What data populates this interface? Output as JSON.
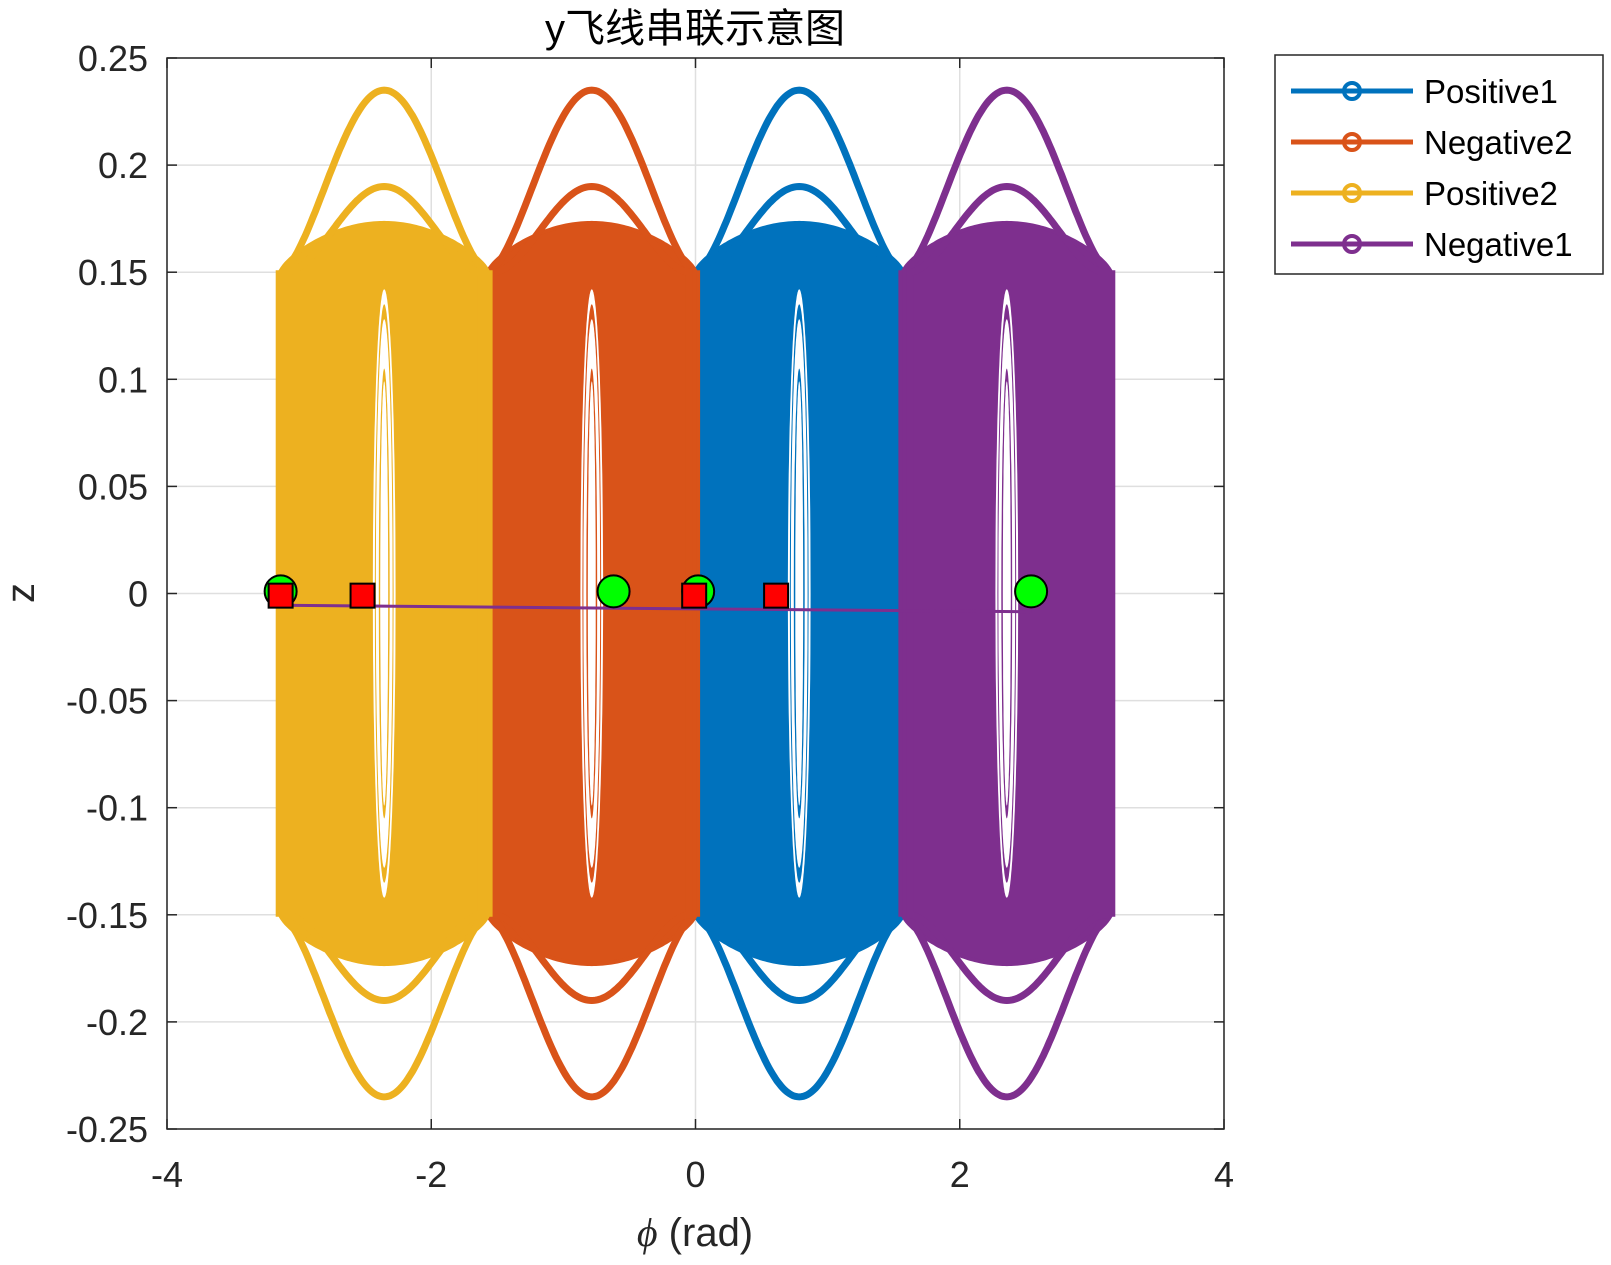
{
  "chart_data": {
    "type": "line",
    "title": "y飞线串联示意图",
    "xlabel_symbol": "ϕ",
    "xlabel_unit": " (rad)",
    "ylabel": "z",
    "xlim": [
      -4,
      4
    ],
    "ylim": [
      -0.25,
      0.25
    ],
    "xticks": [
      -4,
      -2,
      0,
      2,
      4
    ],
    "xtick_labels": [
      "-4",
      "-2",
      "0",
      "2",
      "4"
    ],
    "yticks": [
      0.25,
      0.2,
      0.15,
      0.1,
      0.05,
      0,
      -0.05,
      -0.1,
      -0.15,
      -0.2,
      -0.25
    ],
    "ytick_labels": [
      "0.25",
      "0.2",
      "0.15",
      "0.1",
      "0.05",
      "0",
      "-0.05",
      "-0.1",
      "-0.15",
      "-0.2",
      "-0.25"
    ],
    "grid": true,
    "legend_position": "outside-top-right",
    "series": [
      {
        "name": "Positive1",
        "color": "#0072BD",
        "center": 0.785,
        "x_range": [
          0,
          1.571
        ],
        "outer_peak": 0.235,
        "second_peak": 0.19,
        "band_edge": 0.15,
        "band_peak": 0.173,
        "inner_hole_half_width": 0.075,
        "inner_hole_peak": 0.13,
        "innermost_hole_peak": 0.105,
        "marker_style": "o"
      },
      {
        "name": "Negative2",
        "color": "#D95319",
        "center": -0.785,
        "x_range": [
          -1.571,
          0
        ],
        "outer_peak": 0.235,
        "second_peak": 0.19,
        "band_edge": 0.15,
        "band_peak": 0.173,
        "inner_hole_half_width": 0.075,
        "inner_hole_peak": 0.13,
        "innermost_hole_peak": 0.105,
        "marker_style": "o"
      },
      {
        "name": "Positive2",
        "color": "#EDB120",
        "center": -2.356,
        "x_range": [
          -3.142,
          -1.571
        ],
        "outer_peak": 0.235,
        "second_peak": 0.19,
        "band_edge": 0.15,
        "band_peak": 0.173,
        "inner_hole_half_width": 0.075,
        "inner_hole_peak": 0.13,
        "innermost_hole_peak": 0.105,
        "marker_style": "o"
      },
      {
        "name": "Negative1",
        "color": "#7E2F8E",
        "center": 2.356,
        "x_range": [
          1.571,
          3.142
        ],
        "outer_peak": 0.235,
        "second_peak": 0.19,
        "band_edge": 0.15,
        "band_peak": 0.173,
        "inner_hole_half_width": 0.075,
        "inner_hole_peak": 0.13,
        "innermost_hole_peak": 0.105,
        "marker_style": "o"
      }
    ],
    "connection_line": {
      "color": "#7E2F8E",
      "x": [
        -3.14,
        2.54
      ],
      "y": [
        -0.0055,
        -0.0085
      ]
    },
    "green_points": {
      "color": "#00FF00",
      "x": [
        -3.14,
        -0.62,
        0.02,
        2.54
      ],
      "y": [
        0.001,
        0.001,
        0.001,
        0.001
      ]
    },
    "red_points": {
      "color": "#FF0000",
      "x": [
        -3.14,
        -2.52,
        -0.01,
        0.61
      ],
      "y": [
        -0.001,
        -0.001,
        -0.001,
        -0.001
      ]
    }
  }
}
